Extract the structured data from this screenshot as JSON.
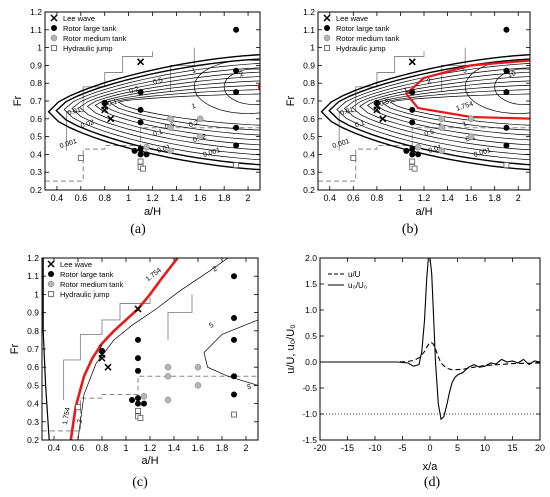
{
  "chart_data": [
    {
      "id": "a",
      "type": "scatter",
      "panel_label": "(a)",
      "xlabel": "a/H",
      "ylabel": "Fr",
      "xlim": [
        0.3,
        2.1
      ],
      "ylim": [
        0.2,
        1.2
      ],
      "xticks": [
        0.4,
        0.6,
        0.8,
        1,
        1.2,
        1.4,
        1.6,
        1.8,
        2
      ],
      "xtick_labels": [
        "0.4",
        "0.6",
        "0.8",
        "1",
        "1.2",
        "1.4",
        "1.6",
        "1.8",
        "2"
      ],
      "yticks": [
        0.2,
        0.3,
        0.4,
        0.5,
        0.6,
        0.7,
        0.8,
        0.9,
        1,
        1.1,
        1.2
      ],
      "ytick_labels": [
        "0.2",
        "0.3",
        "0.4",
        "0.5",
        "0.6",
        "0.7",
        "0.8",
        "0.9",
        "1",
        "1.1",
        "1.2"
      ],
      "legend": {
        "position": "top-left",
        "entries": [
          {
            "label": "Lee wave",
            "marker": "x"
          },
          {
            "label": "Rotor large tank",
            "marker": "filled-circle"
          },
          {
            "label": "Rotor medium tank",
            "marker": "grey-circle"
          },
          {
            "label": "Hydraulic jump",
            "marker": "open-square"
          }
        ]
      },
      "contour_labels": [
        "0.001",
        "0.01",
        "0.02",
        "0.1",
        "0.2",
        "0.5",
        "1",
        "2",
        "1",
        "0.5",
        "0.2",
        "0.1",
        "0.02",
        "0.01",
        "0.001"
      ],
      "red_curve_color": "#e41a1c",
      "points": {
        "lee_wave": [
          [
            0.8,
            0.67
          ],
          [
            0.8,
            0.65
          ],
          [
            0.85,
            0.6
          ],
          [
            1.1,
            0.92
          ]
        ],
        "rotor_large": [
          [
            0.8,
            0.69
          ],
          [
            1.05,
            0.42
          ],
          [
            1.1,
            0.4
          ],
          [
            1.1,
            0.43
          ],
          [
            1.15,
            0.4
          ],
          [
            1.1,
            0.75
          ],
          [
            1.1,
            0.65
          ],
          [
            1.1,
            0.58
          ],
          [
            1.9,
            1.1
          ],
          [
            1.9,
            0.55
          ],
          [
            1.9,
            0.45
          ],
          [
            1.9,
            0.75
          ],
          [
            1.9,
            0.87
          ]
        ],
        "rotor_medium": [
          [
            1.15,
            0.44
          ],
          [
            1.35,
            0.55
          ],
          [
            1.35,
            0.6
          ],
          [
            1.6,
            0.6
          ],
          [
            1.6,
            0.5
          ],
          [
            1.35,
            0.42
          ]
        ],
        "hydraulic_jump": [
          [
            0.6,
            0.38
          ],
          [
            1.1,
            0.36
          ],
          [
            1.1,
            0.33
          ],
          [
            1.12,
            0.32
          ],
          [
            1.9,
            0.34
          ]
        ]
      }
    },
    {
      "id": "b",
      "type": "scatter",
      "panel_label": "(b)",
      "xlabel": "a/H",
      "ylabel": "Fr",
      "xlim": [
        0.3,
        2.1
      ],
      "ylim": [
        0.2,
        1.2
      ],
      "xticks": [
        0.4,
        0.6,
        0.8,
        1,
        1.2,
        1.4,
        1.6,
        1.8,
        2
      ],
      "xtick_labels": [
        "0.4",
        "0.6",
        "0.8",
        "1",
        "1.2",
        "1.4",
        "1.6",
        "1.8",
        "2"
      ],
      "yticks": [
        0.2,
        0.3,
        0.4,
        0.5,
        0.6,
        0.7,
        0.8,
        0.9,
        1,
        1.1,
        1.2
      ],
      "ytick_labels": [
        "0.2",
        "0.3",
        "0.4",
        "0.5",
        "0.6",
        "0.7",
        "0.8",
        "0.9",
        "1",
        "1.1",
        "1.2"
      ],
      "legend": {
        "position": "top-left",
        "entries": [
          {
            "label": "Lee wave",
            "marker": "x"
          },
          {
            "label": "Rotor large tank",
            "marker": "filled-circle"
          },
          {
            "label": "Rotor medium tank",
            "marker": "grey-circle"
          },
          {
            "label": "Hydraulic jump",
            "marker": "open-square"
          }
        ]
      },
      "contour_labels": [
        "0.001",
        "0.01",
        "0.1",
        "0.5",
        "1",
        "2",
        "5",
        "10",
        "1.754",
        "5",
        "1",
        "0.5",
        "0.1",
        "0.01",
        "0.001"
      ],
      "red_curve_label": "1.754",
      "red_curve_color": "#e41a1c"
    },
    {
      "id": "c",
      "type": "scatter",
      "panel_label": "(c)",
      "xlabel": "a/H",
      "ylabel": "Fr",
      "xlim": [
        0.3,
        2.1
      ],
      "ylim": [
        0.2,
        1.2
      ],
      "xticks": [
        0.4,
        0.6,
        0.8,
        1,
        1.2,
        1.4,
        1.6,
        1.8,
        2
      ],
      "xtick_labels": [
        "0.4",
        "0.6",
        "0.8",
        "1",
        "1.2",
        "1.4",
        "1.6",
        "1.8",
        "2"
      ],
      "yticks": [
        0.2,
        0.3,
        0.4,
        0.5,
        0.6,
        0.7,
        0.8,
        0.9,
        1,
        1.1,
        1.2
      ],
      "ytick_labels": [
        "0.2",
        "0.3",
        "0.4",
        "0.5",
        "0.6",
        "0.7",
        "0.8",
        "0.9",
        "1",
        "1.1",
        "1.2"
      ],
      "legend": {
        "position": "top-left",
        "entries": [
          {
            "label": "Lee wave",
            "marker": "x"
          },
          {
            "label": "Rotor large tank",
            "marker": "filled-circle"
          },
          {
            "label": "Rotor medium tank",
            "marker": "grey-circle"
          },
          {
            "label": "Hydraulic jump",
            "marker": "open-square"
          }
        ]
      },
      "contour_labels": [
        "1.754",
        "2",
        "1.754",
        "2",
        "2",
        "5",
        "5"
      ],
      "red_curve": {
        "label": "1.754",
        "x": [
          0.54,
          0.58,
          0.65,
          0.72,
          0.8,
          0.9,
          1.0,
          1.1,
          1.2,
          1.3,
          1.43
        ],
        "y": [
          0.2,
          0.38,
          0.55,
          0.65,
          0.73,
          0.8,
          0.86,
          0.92,
          1.0,
          1.09,
          1.2
        ]
      },
      "red_curve_color": "#e41a1c"
    },
    {
      "id": "d",
      "type": "line",
      "panel_label": "(d)",
      "xlabel": "x/a",
      "ylabel": "u/U, u₀/U₀",
      "xlim": [
        -20,
        20
      ],
      "ylim": [
        -1.5,
        2.0
      ],
      "xticks": [
        -20,
        -15,
        -10,
        -5,
        0,
        5,
        10,
        15,
        20
      ],
      "xtick_labels": [
        "-20",
        "-15",
        "-10",
        "-5",
        "0",
        "5",
        "10",
        "15",
        "20"
      ],
      "yticks": [
        -1.5,
        -1.0,
        -0.5,
        0.0,
        0.5,
        1.0,
        1.5,
        2.0
      ],
      "ytick_labels": [
        "-1.5",
        "-1.0",
        "-0.5",
        "0.0",
        "0.5",
        "1.0",
        "1.5",
        "2.0"
      ],
      "reference_line": {
        "y": -1.0,
        "style": "dotted"
      },
      "legend": {
        "position": "top-left"
      },
      "series": [
        {
          "name": "u/U",
          "style": "dashed",
          "x": [
            -20,
            -15,
            -10,
            -6,
            -4,
            -3,
            -2,
            -1,
            -0.5,
            0,
            0.5,
            1,
            1.5,
            2,
            3,
            4,
            6,
            8,
            10,
            15,
            20
          ],
          "y": [
            0.0,
            0.0,
            0.0,
            0.0,
            0.01,
            0.03,
            0.08,
            0.2,
            0.3,
            0.38,
            0.36,
            0.25,
            0.1,
            -0.02,
            -0.12,
            -0.15,
            -0.14,
            -0.1,
            -0.07,
            -0.03,
            -0.02
          ]
        },
        {
          "name": "u₀/U₀",
          "style": "solid",
          "x": [
            -20,
            -15,
            -10,
            -6,
            -4,
            -3,
            -2,
            -1.5,
            -1,
            -0.6,
            -0.3,
            0,
            0.3,
            0.6,
            1,
            1.5,
            2,
            2.5,
            3,
            3.5,
            4,
            4.5,
            5,
            6,
            7,
            8,
            9,
            10,
            11,
            12,
            13,
            14,
            15,
            16,
            17,
            18,
            19,
            20
          ],
          "y": [
            0.0,
            0.0,
            0.0,
            0.0,
            -0.02,
            -0.08,
            -0.05,
            0.2,
            0.8,
            1.6,
            2.0,
            2.0,
            1.7,
            1.0,
            0.0,
            -0.8,
            -1.1,
            -1.05,
            -0.85,
            -0.6,
            -0.4,
            -0.3,
            -0.25,
            -0.2,
            -0.1,
            -0.05,
            -0.1,
            -0.08,
            -0.02,
            -0.04,
            0.05,
            0.0,
            0.02,
            -0.02,
            0.05,
            -0.05,
            0.02,
            0.0
          ]
        }
      ]
    }
  ]
}
